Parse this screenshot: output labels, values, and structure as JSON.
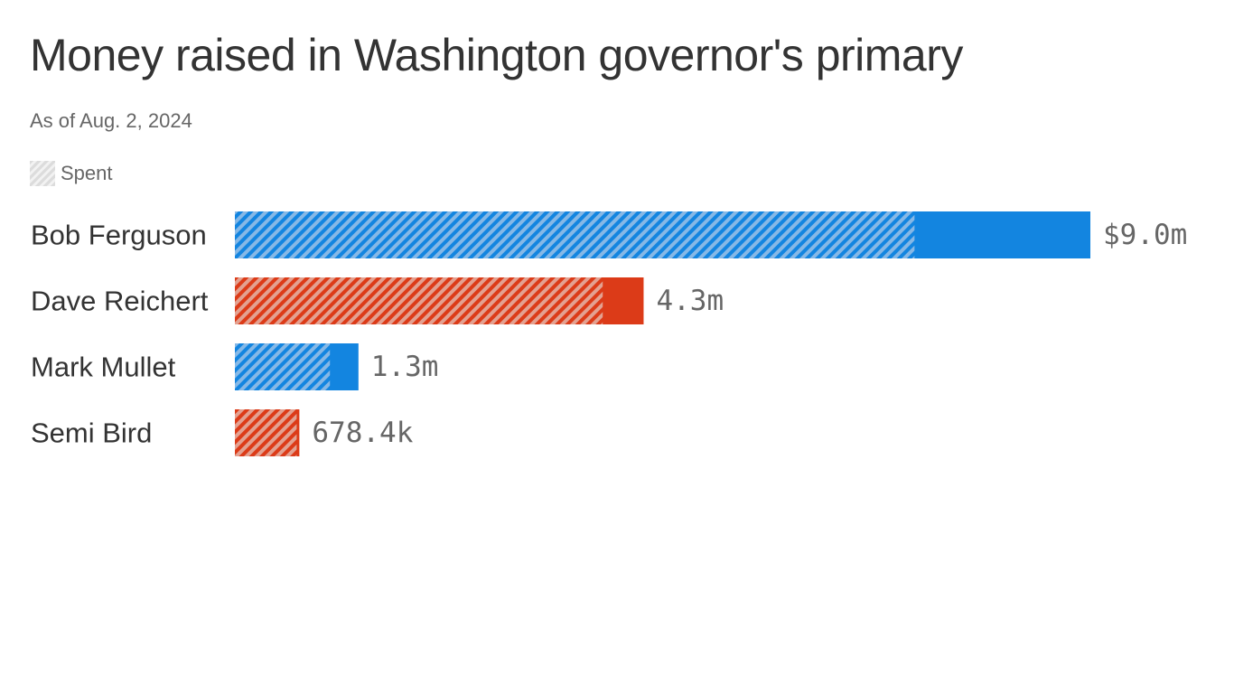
{
  "title": "Money raised in Washington governor's primary",
  "subtitle": "As of Aug. 2, 2024",
  "legend": {
    "spent_label": "Spent"
  },
  "colors": {
    "democrat": "#1385e0",
    "democrat_spent_hatch": "#86b8e6",
    "republican": "#dc3b18",
    "republican_spent_hatch": "#e3a191",
    "text": "#333333",
    "muted_text": "#666666"
  },
  "chart_data": {
    "type": "bar",
    "orientation": "horizontal",
    "categories": [
      "Bob Ferguson",
      "Dave Reichert",
      "Mark Mullet",
      "Semi Bird"
    ],
    "series": [
      {
        "name": "Raised",
        "values": [
          9.0,
          4.3,
          1.3,
          0.6784
        ]
      },
      {
        "name": "Spent",
        "values": [
          7.15,
          3.87,
          1.0,
          0.65
        ]
      }
    ],
    "value_labels": [
      "$9.0m",
      "4.3m",
      "1.3m",
      "678.4k"
    ],
    "party_colors": [
      "democrat",
      "republican",
      "democrat",
      "republican"
    ],
    "unit": "millions of dollars",
    "xlim": [
      0,
      9.0
    ],
    "legend_position": "top-left",
    "grid": false
  }
}
